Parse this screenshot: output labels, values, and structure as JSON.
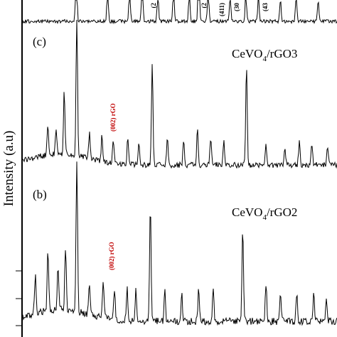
{
  "chart_data": {
    "type": "line",
    "ylabel": "Intensity (a.u)",
    "colors": {
      "trace": "#000000",
      "rgo_annotation": "#c00000"
    },
    "panels": [
      {
        "id": "d",
        "label": "",
        "sample": "",
        "peak_labels": [
          "(2",
          "(2",
          "(411)",
          "(30",
          "(43"
        ],
        "peaks": [
          {
            "x": 28.5,
            "h": 1.0
          },
          {
            "x": 33.5,
            "h": 0.55
          },
          {
            "x": 37.0,
            "h": 0.45
          },
          {
            "x": 39.0,
            "h": 0.6
          },
          {
            "x": 41.5,
            "h": 0.4
          },
          {
            "x": 44.0,
            "h": 0.5
          },
          {
            "x": 46.5,
            "h": 0.45
          },
          {
            "x": 48.0,
            "h": 0.9
          },
          {
            "x": 49.5,
            "h": 0.5
          },
          {
            "x": 53.0,
            "h": 0.35
          },
          {
            "x": 55.5,
            "h": 0.4
          },
          {
            "x": 57.5,
            "h": 0.35
          },
          {
            "x": 61.0,
            "h": 0.3
          },
          {
            "x": 63.5,
            "h": 0.35
          },
          {
            "x": 67.0,
            "h": 0.3
          }
        ]
      },
      {
        "id": "c",
        "label": "(c)",
        "sample_main": "CeVO",
        "sample_sub": "4",
        "sample_rest": "/rGO3",
        "rgo_label": "(002) rGO",
        "peaks": [
          {
            "x": 24.0,
            "h": 0.22
          },
          {
            "x": 25.3,
            "h": 0.16
          },
          {
            "x": 26.6,
            "h": 0.45
          },
          {
            "x": 28.6,
            "h": 1.0
          },
          {
            "x": 30.6,
            "h": 0.18
          },
          {
            "x": 32.6,
            "h": 0.18
          },
          {
            "x": 34.4,
            "h": 0.16
          },
          {
            "x": 36.7,
            "h": 0.18
          },
          {
            "x": 38.5,
            "h": 0.16
          },
          {
            "x": 40.6,
            "h": 0.74
          },
          {
            "x": 43.0,
            "h": 0.2
          },
          {
            "x": 45.6,
            "h": 0.16
          },
          {
            "x": 47.8,
            "h": 0.25
          },
          {
            "x": 49.9,
            "h": 0.2
          },
          {
            "x": 52.0,
            "h": 0.16
          },
          {
            "x": 55.6,
            "h": 0.7
          },
          {
            "x": 58.7,
            "h": 0.14
          },
          {
            "x": 61.7,
            "h": 0.14
          },
          {
            "x": 64.0,
            "h": 0.16
          },
          {
            "x": 66.0,
            "h": 0.15
          },
          {
            "x": 68.5,
            "h": 0.12
          }
        ]
      },
      {
        "id": "b",
        "label": "(b)",
        "sample_main": "CeVO",
        "sample_sub": "4",
        "sample_rest": "/rGO2",
        "rgo_label": "(002) rGO",
        "peaks": [
          {
            "x": 22.0,
            "h": 0.25
          },
          {
            "x": 24.0,
            "h": 0.4
          },
          {
            "x": 25.6,
            "h": 0.3
          },
          {
            "x": 26.8,
            "h": 0.42
          },
          {
            "x": 28.6,
            "h": 1.0
          },
          {
            "x": 30.6,
            "h": 0.22
          },
          {
            "x": 32.8,
            "h": 0.25
          },
          {
            "x": 34.6,
            "h": 0.2
          },
          {
            "x": 36.6,
            "h": 0.22
          },
          {
            "x": 38.0,
            "h": 0.2
          },
          {
            "x": 40.3,
            "h": 0.78
          },
          {
            "x": 42.6,
            "h": 0.2
          },
          {
            "x": 45.3,
            "h": 0.18
          },
          {
            "x": 48.0,
            "h": 0.22
          },
          {
            "x": 50.3,
            "h": 0.2
          },
          {
            "x": 55.0,
            "h": 0.6
          },
          {
            "x": 58.7,
            "h": 0.25
          },
          {
            "x": 61.0,
            "h": 0.2
          },
          {
            "x": 63.6,
            "h": 0.2
          },
          {
            "x": 66.3,
            "h": 0.2
          },
          {
            "x": 68.3,
            "h": 0.16
          }
        ]
      }
    ]
  }
}
